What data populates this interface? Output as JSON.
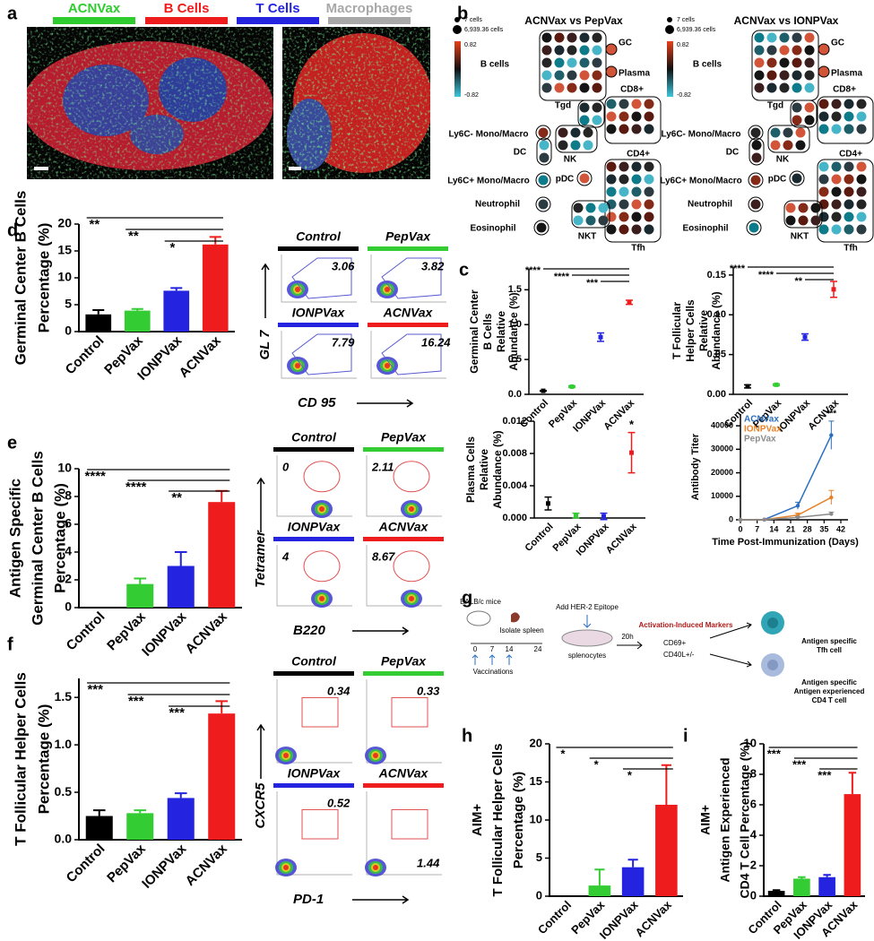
{
  "figure": {
    "panel_letters": [
      "a",
      "b",
      "c",
      "d",
      "e",
      "f",
      "g",
      "h",
      "i"
    ],
    "microscopy_legend": [
      {
        "name": "ACNVax",
        "color": "#2ecc2e"
      },
      {
        "name": "B Cells",
        "color": "#ee1c1c"
      },
      {
        "name": "T Cells",
        "color": "#2424e0"
      },
      {
        "name": "Macrophages",
        "color": "#a8a8a8"
      }
    ],
    "network": {
      "titles": [
        "ACNVax vs PepVax",
        "ACNVax vs IONPVax"
      ],
      "size_legend": [
        "7 cells",
        "6,939.36 cells"
      ],
      "color_scale": [
        0.82,
        -0.82
      ],
      "clusters": [
        "B cells",
        "GC",
        "Plasma",
        "CD8+",
        "Tgd",
        "Ly6C- Mono/Macro",
        "DC",
        "NK",
        "pDC",
        "Ly6C+ Mono/Macro",
        "CD4+",
        "Neutrophil",
        "NKT",
        "Eosinophil",
        "Tfh"
      ]
    },
    "flow": [
      {
        "y_label": "GL 7",
        "x_label": "CD 95",
        "groups": [
          "Control",
          "PepVax",
          "IONPVax",
          "ACNVax"
        ],
        "colors": [
          "#000000",
          "#33cc33",
          "#2424e0",
          "#ee1c1c"
        ],
        "values": [
          3.06,
          3.82,
          7.79,
          16.24
        ]
      },
      {
        "y_label": "Tetramer",
        "x_label": "B220",
        "groups": [
          "Control",
          "PepVax",
          "IONPVax",
          "ACNVax"
        ],
        "colors": [
          "#000000",
          "#33cc33",
          "#2424e0",
          "#ee1c1c"
        ],
        "values": [
          0,
          2.11,
          4,
          8.67
        ]
      },
      {
        "y_label": "CXCR5",
        "x_label": "PD-1",
        "groups": [
          "Control",
          "PepVax",
          "IONPVax",
          "ACNVax"
        ],
        "colors": [
          "#000000",
          "#33cc33",
          "#2424e0",
          "#ee1c1c"
        ],
        "values": [
          0.34,
          0.33,
          0.52,
          1.44
        ]
      }
    ],
    "schematic": {
      "mice": "BALB/c mice",
      "spleen": "Isolate spleen",
      "epitope": "Add HER-2 Epitope",
      "timeline": [
        0,
        7,
        14,
        24
      ],
      "vaccinations": "Vaccinations",
      "splenocytes": "splenocytes",
      "incubation": "20h",
      "aim": "Activation-Induced Markers",
      "marker_1": "CD69+",
      "marker_2": "CD40L+/-",
      "cell_1": [
        "Antigen specific",
        "Tfh cell"
      ],
      "cell_2": [
        "Antigen specific",
        "Antigen experienced",
        "CD4 T cell"
      ]
    }
  },
  "chart_data": [
    {
      "type": "bar",
      "ylabel": [
        "Germinal Center B Cells",
        "Percentage (%)"
      ],
      "categories": [
        "Control",
        "PepVax",
        "IONPVax",
        "ACNVax"
      ],
      "values": [
        3.2,
        3.9,
        7.6,
        16.2
      ],
      "errors": [
        0.8,
        0.3,
        0.5,
        1.4
      ],
      "colors": [
        "#000000",
        "#33cc33",
        "#2424e0",
        "#ee1c1c"
      ],
      "ylim": [
        0,
        20
      ],
      "yticks": [
        0,
        5,
        10,
        15,
        20
      ],
      "significance": [
        "**",
        "**",
        "*"
      ]
    },
    {
      "type": "bar",
      "ylabel": [
        "Antigen Specific",
        "Germinal Center B Cells",
        "Percentage (%)"
      ],
      "categories": [
        "Control",
        "PepVax",
        "IONPVax",
        "ACNVax"
      ],
      "values": [
        0,
        1.7,
        3.0,
        7.6
      ],
      "errors": [
        0,
        0.4,
        1.0,
        0.8
      ],
      "colors": [
        "#000000",
        "#33cc33",
        "#2424e0",
        "#ee1c1c"
      ],
      "ylim": [
        0,
        10
      ],
      "yticks": [
        0,
        2,
        4,
        6,
        8,
        10
      ],
      "significance": [
        "****",
        "****",
        "**"
      ]
    },
    {
      "type": "bar",
      "ylabel": [
        "T Follicular Helper Cells",
        "Percentage (%)"
      ],
      "categories": [
        "Control",
        "PepVax",
        "IONPVax",
        "ACNVax"
      ],
      "values": [
        0.25,
        0.28,
        0.44,
        1.33
      ],
      "errors": [
        0.06,
        0.03,
        0.05,
        0.13
      ],
      "colors": [
        "#000000",
        "#33cc33",
        "#2424e0",
        "#ee1c1c"
      ],
      "ylim": [
        0,
        1.7
      ],
      "yticks": [
        {
          "value": 0,
          "label": "0.0"
        },
        {
          "value": 0.5,
          "label": "0.5"
        },
        {
          "value": 1,
          "label": "1.0"
        },
        {
          "value": 1.5,
          "label": "1.5"
        }
      ],
      "significance": [
        "***",
        "***",
        "***"
      ]
    },
    {
      "type": "bar",
      "ylabel": [
        "AIM+",
        "T Follicular Helper Cells",
        "Percentage (%)"
      ],
      "categories": [
        "Control",
        "PepVax",
        "IONPVax",
        "ACNVax"
      ],
      "values": [
        0,
        1.4,
        3.8,
        12.0
      ],
      "errors": [
        0,
        2.1,
        1.0,
        5.2
      ],
      "colors": [
        "#000000",
        "#33cc33",
        "#2424e0",
        "#ee1c1c"
      ],
      "ylim": [
        0,
        20
      ],
      "yticks": [
        0,
        5,
        10,
        15,
        20
      ],
      "significance": [
        "*",
        "*",
        "*"
      ]
    },
    {
      "type": "bar",
      "ylabel": [
        "AIM+",
        "Antigen Experienced",
        "CD4 T Cell Percentage (%)"
      ],
      "categories": [
        "Control",
        "PepVax",
        "IONPVax",
        "ACNVax"
      ],
      "values": [
        0.35,
        1.15,
        1.25,
        6.7
      ],
      "errors": [
        0.05,
        0.1,
        0.15,
        1.4
      ],
      "colors": [
        "#000000",
        "#33cc33",
        "#2424e0",
        "#ee1c1c"
      ],
      "ylim": [
        0,
        10
      ],
      "yticks": [
        0,
        2,
        4,
        6,
        8,
        10
      ],
      "significance": [
        "***",
        "***",
        "***"
      ]
    },
    {
      "type": "dot",
      "ylabel": [
        "Germinal Center",
        "B Cells",
        "Relative",
        "Abundance (%)"
      ],
      "categories": [
        "Control",
        "PepVax",
        "IONPVax",
        "ACNVax"
      ],
      "values": [
        0.05,
        0.11,
        0.82,
        1.32
      ],
      "errors": [
        0.005,
        0.01,
        0.06,
        0.03
      ],
      "colors": [
        "#000000",
        "#33cc33",
        "#2424e0",
        "#ee1c1c"
      ],
      "ylim": [
        0,
        1.8
      ],
      "yticks": [
        {
          "value": 0,
          "label": "0.0"
        },
        {
          "value": 0.5,
          "label": "0.5"
        },
        {
          "value": 1,
          "label": "1.0"
        },
        {
          "value": 1.5,
          "label": "1.5"
        }
      ],
      "significance": [
        "****",
        "****",
        "***"
      ]
    },
    {
      "type": "dot",
      "ylabel": [
        "T Follicular",
        "Helper Cells",
        "Relative",
        "Abundance (%)"
      ],
      "categories": [
        "Control",
        "PepVax",
        "IONPVax",
        "ACNVax"
      ],
      "values": [
        0.01,
        0.012,
        0.072,
        0.132
      ],
      "errors": [
        0.002,
        0.001,
        0.004,
        0.01
      ],
      "colors": [
        "#000000",
        "#33cc33",
        "#2424e0",
        "#ee1c1c"
      ],
      "ylim": [
        0,
        0.16
      ],
      "yticks": [
        {
          "value": 0,
          "label": "0.00"
        },
        {
          "value": 0.05,
          "label": "0.05"
        },
        {
          "value": 0.1,
          "label": "0.10"
        },
        {
          "value": 0.15,
          "label": "0.15"
        }
      ],
      "significance": [
        "****",
        "****",
        "**"
      ]
    },
    {
      "type": "dot",
      "ylabel": [
        "Plasma Cells",
        "Relative",
        "Abundance (%)"
      ],
      "categories": [
        "Control",
        "PepVax",
        "IONPVax",
        "ACNVax"
      ],
      "values": [
        0.0018,
        0.0003,
        0.0002,
        0.0081
      ],
      "errors": [
        0.0008,
        0.0003,
        0.0004,
        0.0025
      ],
      "colors": [
        "#000000",
        "#33cc33",
        "#2424e0",
        "#ee1c1c"
      ],
      "ylim": [
        0,
        0.012
      ],
      "yticks": [
        {
          "value": 0,
          "label": "0.000"
        },
        {
          "value": 0.004,
          "label": "0.004"
        },
        {
          "value": 0.008,
          "label": "0.008"
        },
        {
          "value": 0.012,
          "label": "0.012"
        }
      ],
      "significance": [
        "*"
      ]
    },
    {
      "type": "line",
      "ylabel": "Antibody Titer",
      "xlabel": "Time Post-Immunization (Days)",
      "x": [
        0,
        10,
        24,
        38
      ],
      "xlim": [
        0,
        45
      ],
      "xticks": [
        0,
        7,
        14,
        21,
        28,
        35,
        42
      ],
      "ylim": [
        0,
        45000
      ],
      "yticks": [
        0,
        10000,
        20000,
        30000,
        40000
      ],
      "series": [
        {
          "name": "ACNVax",
          "color": "#2a6fbf",
          "values": [
            0,
            100,
            6000,
            36000
          ],
          "errors": [
            0,
            100,
            1500,
            6000
          ]
        },
        {
          "name": "IONPVax",
          "color": "#e8822a",
          "values": [
            0,
            50,
            2000,
            9500
          ],
          "errors": [
            0,
            50,
            800,
            3000
          ]
        },
        {
          "name": "PepVax",
          "color": "#8a8a8a",
          "values": [
            0,
            30,
            1000,
            2500
          ],
          "errors": [
            0,
            30,
            400,
            800
          ]
        }
      ],
      "annotation": "***"
    }
  ]
}
